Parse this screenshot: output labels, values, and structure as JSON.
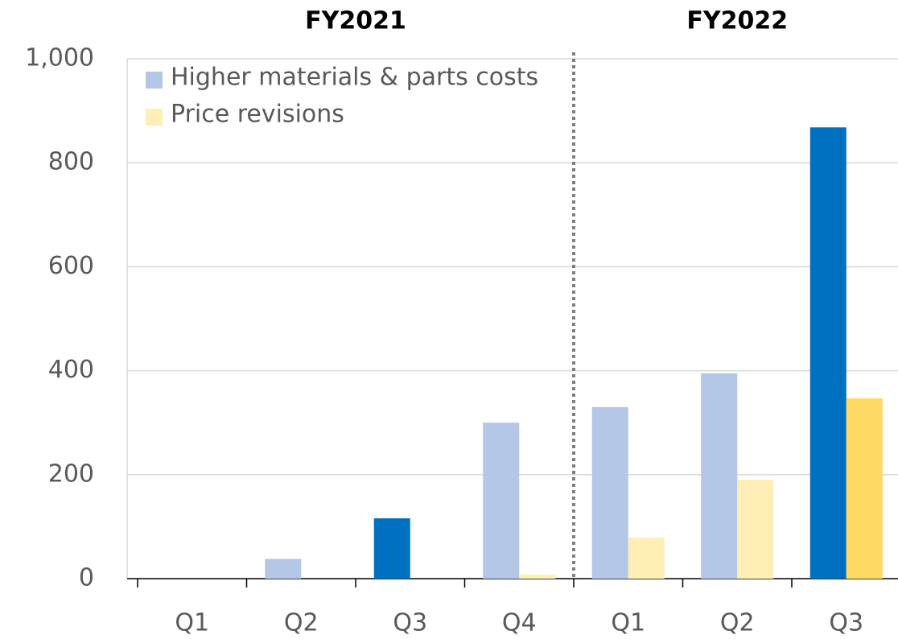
{
  "chart_data": {
    "type": "bar",
    "categories": [
      "Q1",
      "Q2",
      "Q3",
      "Q4",
      "Q1",
      "Q2",
      "Q3"
    ],
    "groups": [
      {
        "label": "FY2021",
        "count": 4
      },
      {
        "label": "FY2022",
        "count": 3
      }
    ],
    "series": [
      {
        "name": "Higher materials & parts costs",
        "color": "#b4c7e7",
        "colors": [
          "#b4c7e7",
          "#b4c7e7",
          "#0070c0",
          "#b4c7e7",
          "#b4c7e7",
          "#b4c7e7",
          "#0070c0"
        ],
        "values": [
          0,
          38,
          116,
          300,
          330,
          395,
          868
        ]
      },
      {
        "name": "Price revisions",
        "color": "#ffeeb5",
        "colors": [
          "#ffeeb5",
          "#ffeeb5",
          "#ffeeb5",
          "#ffeeb5",
          "#ffeeb5",
          "#ffeeb5",
          "#ffd966"
        ],
        "values": [
          0,
          0,
          0,
          8,
          79,
          190,
          347
        ]
      }
    ],
    "ylim": [
      0,
      1000
    ],
    "yticks": [
      0,
      200,
      400,
      600,
      800,
      {
        "value": 1000,
        "label": "1,000"
      }
    ],
    "grid": true,
    "legend": "top-left"
  }
}
